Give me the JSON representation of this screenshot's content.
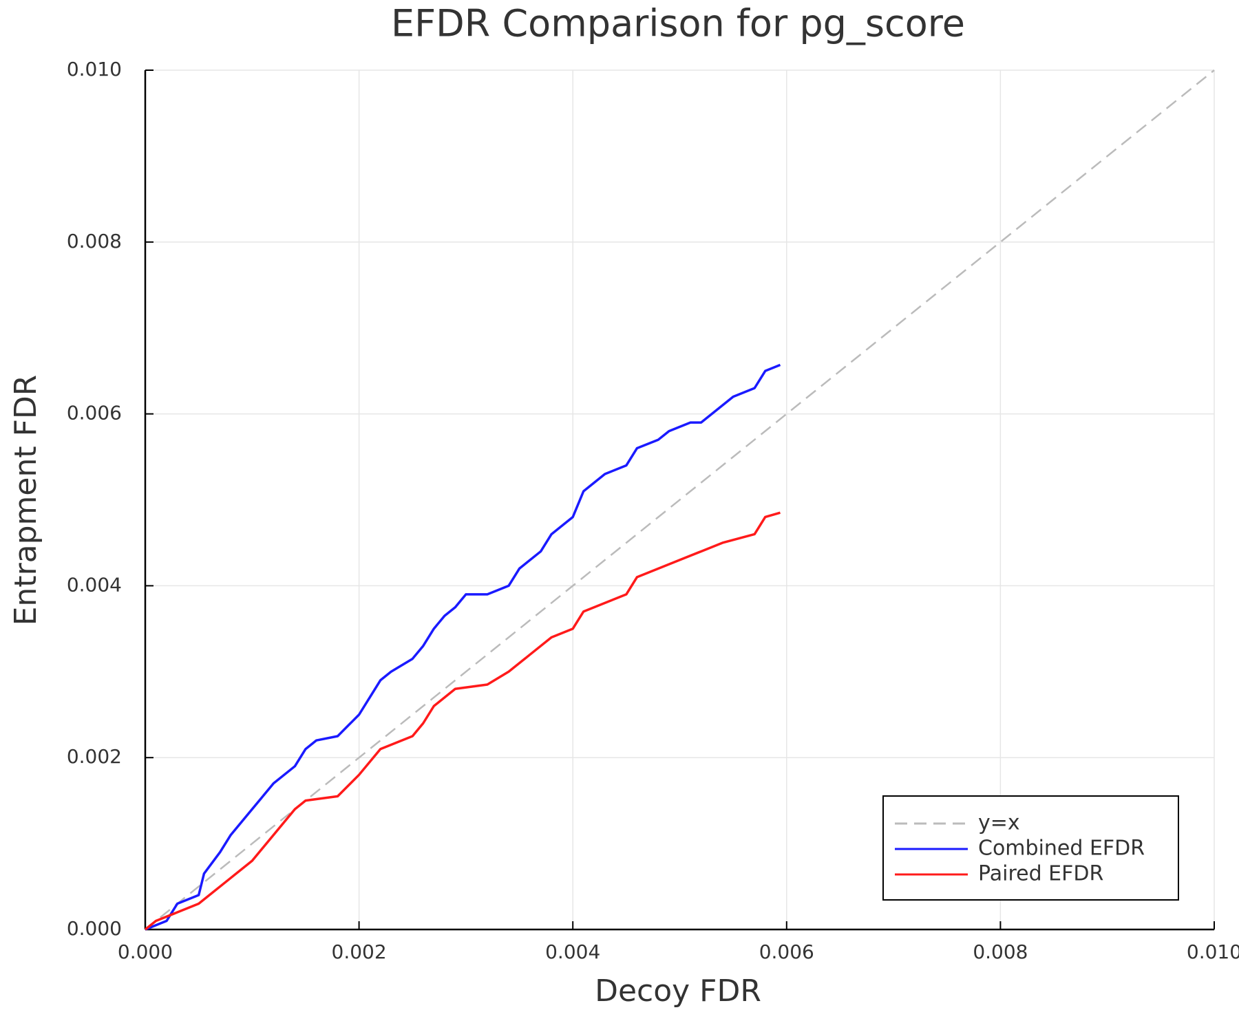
{
  "chart_data": {
    "type": "line",
    "title": "EFDR Comparison for pg_score",
    "x_label": "Decoy FDR",
    "y_label": "Entrapment FDR",
    "xlim": [
      0,
      0.01
    ],
    "ylim": [
      0,
      0.01
    ],
    "xticks": [
      {
        "value": 0,
        "label": "0.000"
      },
      0.002,
      0.004,
      0.006,
      0.008,
      {
        "value": 0.01,
        "label": "0.010"
      }
    ],
    "yticks": [
      {
        "value": 0,
        "label": "0.000"
      },
      0.002,
      0.004,
      0.006,
      0.008,
      {
        "value": 0.01,
        "label": "0.010"
      }
    ],
    "grid": true,
    "legend": "bottom-right",
    "series": [
      {
        "name": "y=x",
        "color": "#bbbbbb",
        "dashed": true,
        "x": [
          0,
          0.01
        ],
        "values": [
          0,
          0.01
        ]
      },
      {
        "name": "Combined EFDR",
        "color": "#1a1aff",
        "dashed": false,
        "x": [
          0,
          0.0002,
          0.0003,
          0.0005,
          0.00055,
          0.0007,
          0.0008,
          0.001,
          0.0012,
          0.0014,
          0.0015,
          0.0016,
          0.0018,
          0.002,
          0.0021,
          0.0022,
          0.0023,
          0.0025,
          0.0026,
          0.0027,
          0.0028,
          0.0029,
          0.003,
          0.0032,
          0.0034,
          0.0035,
          0.0037,
          0.0038,
          0.004,
          0.0041,
          0.0043,
          0.0045,
          0.0046,
          0.0048,
          0.0049,
          0.0051,
          0.0052,
          0.0053,
          0.0055,
          0.0057,
          0.0058,
          0.00594
        ],
        "values": [
          0,
          0.0001,
          0.0003,
          0.0004,
          0.00065,
          0.0009,
          0.0011,
          0.0014,
          0.0017,
          0.0019,
          0.0021,
          0.0022,
          0.00225,
          0.0025,
          0.0027,
          0.0029,
          0.003,
          0.00315,
          0.0033,
          0.0035,
          0.00365,
          0.00375,
          0.0039,
          0.0039,
          0.004,
          0.0042,
          0.0044,
          0.0046,
          0.0048,
          0.0051,
          0.0053,
          0.0054,
          0.0056,
          0.0057,
          0.0058,
          0.0059,
          0.0059,
          0.006,
          0.0062,
          0.0063,
          0.0065,
          0.00657
        ]
      },
      {
        "name": "Paired EFDR",
        "color": "#ff1a1a",
        "dashed": false,
        "x": [
          0,
          0.0001,
          0.0003,
          0.0005,
          0.0006,
          0.0008,
          0.001,
          0.0012,
          0.0014,
          0.0015,
          0.0018,
          0.002,
          0.0022,
          0.0024,
          0.0025,
          0.0026,
          0.0027,
          0.0029,
          0.0032,
          0.0034,
          0.0036,
          0.0038,
          0.004,
          0.0041,
          0.0043,
          0.0045,
          0.0046,
          0.0048,
          0.005,
          0.0052,
          0.0054,
          0.0057,
          0.0058,
          0.00594
        ],
        "values": [
          0,
          0.0001,
          0.0002,
          0.0003,
          0.0004,
          0.0006,
          0.0008,
          0.0011,
          0.0014,
          0.0015,
          0.00155,
          0.0018,
          0.0021,
          0.0022,
          0.00225,
          0.0024,
          0.0026,
          0.0028,
          0.00285,
          0.003,
          0.0032,
          0.0034,
          0.0035,
          0.0037,
          0.0038,
          0.0039,
          0.0041,
          0.0042,
          0.0043,
          0.0044,
          0.0045,
          0.0046,
          0.0048,
          0.00485
        ]
      }
    ]
  }
}
